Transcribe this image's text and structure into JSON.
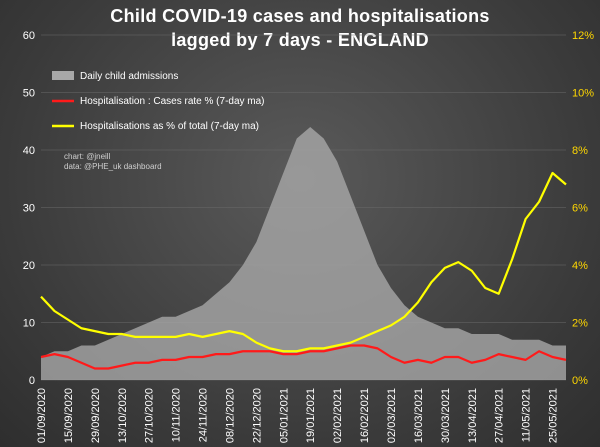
{
  "chart_data": {
    "type": "area",
    "title_line1": "Child COVID-19 cases and hospitalisations",
    "title_line2": "lagged by 7 days - ENGLAND",
    "y_left": {
      "min": 0,
      "max": 60,
      "ticks": [
        "0",
        "10",
        "20",
        "30",
        "40",
        "50",
        "60"
      ]
    },
    "y_right": {
      "min": 0,
      "max": 12,
      "ticks": [
        "0%",
        "2%",
        "4%",
        "6%",
        "8%",
        "10%",
        "12%"
      ]
    },
    "x_labels": [
      "01/09/2020",
      "15/09/2020",
      "29/09/2020",
      "13/10/2020",
      "27/10/2020",
      "10/11/2020",
      "24/11/2020",
      "08/12/2020",
      "22/12/2020",
      "05/01/2021",
      "19/01/2021",
      "02/02/2021",
      "16/02/2021",
      "02/03/2021",
      "16/03/2021",
      "30/03/2021",
      "13/04/2021",
      "27/04/2021",
      "11/05/2021",
      "25/05/2021"
    ],
    "series": [
      {
        "name": "Daily child admissions",
        "axis": "left",
        "kind": "area",
        "color": "#a8a8a8",
        "x_days": [
          0,
          7,
          14,
          21,
          28,
          35,
          42,
          49,
          56,
          63,
          70,
          77,
          84,
          91,
          98,
          105,
          112,
          119,
          126,
          133,
          140,
          147,
          154,
          161,
          168,
          175,
          182,
          189,
          196,
          203,
          210,
          217,
          224,
          231,
          238,
          245,
          252,
          259,
          266,
          273
        ],
        "values": [
          4,
          5,
          5,
          6,
          6,
          7,
          8,
          9,
          10,
          11,
          11,
          12,
          13,
          15,
          17,
          20,
          24,
          30,
          36,
          42,
          44,
          42,
          38,
          32,
          26,
          20,
          16,
          13,
          11,
          10,
          9,
          9,
          8,
          8,
          8,
          7,
          7,
          7,
          6,
          6
        ]
      },
      {
        "name": "Hospitalisation : Cases rate % (7-day ma)",
        "axis": "right",
        "kind": "line",
        "color": "#ff1a1a",
        "x_days": [
          0,
          7,
          14,
          21,
          28,
          35,
          42,
          49,
          56,
          63,
          70,
          77,
          84,
          91,
          98,
          105,
          112,
          119,
          126,
          133,
          140,
          147,
          154,
          161,
          168,
          175,
          182,
          189,
          196,
          203,
          210,
          217,
          224,
          231,
          238,
          245,
          252,
          259,
          266,
          273
        ],
        "values": [
          0.8,
          0.9,
          0.8,
          0.6,
          0.4,
          0.4,
          0.5,
          0.6,
          0.6,
          0.7,
          0.7,
          0.8,
          0.8,
          0.9,
          0.9,
          1.0,
          1.0,
          1.0,
          0.9,
          0.9,
          1.0,
          1.0,
          1.1,
          1.2,
          1.2,
          1.1,
          0.8,
          0.6,
          0.7,
          0.6,
          0.8,
          0.8,
          0.6,
          0.7,
          0.9,
          0.8,
          0.7,
          1.0,
          0.8,
          0.7
        ]
      },
      {
        "name": "Hospitalisations as % of total (7-day ma)",
        "axis": "right",
        "kind": "line",
        "color": "#ffff00",
        "x_days": [
          0,
          7,
          14,
          21,
          28,
          35,
          42,
          49,
          56,
          63,
          70,
          77,
          84,
          91,
          98,
          105,
          112,
          119,
          126,
          133,
          140,
          147,
          154,
          161,
          168,
          175,
          182,
          189,
          196,
          203,
          210,
          217,
          224,
          231,
          238,
          245,
          252,
          259,
          266,
          273
        ],
        "values": [
          2.9,
          2.4,
          2.1,
          1.8,
          1.7,
          1.6,
          1.6,
          1.5,
          1.5,
          1.5,
          1.5,
          1.6,
          1.5,
          1.6,
          1.7,
          1.6,
          1.3,
          1.1,
          1.0,
          1.0,
          1.1,
          1.1,
          1.2,
          1.3,
          1.5,
          1.7,
          1.9,
          2.2,
          2.7,
          3.4,
          3.9,
          4.1,
          3.8,
          3.2,
          3.0,
          4.2,
          5.6,
          6.2,
          7.2,
          6.8
        ]
      }
    ],
    "annotations": [
      "chart: @jneill",
      "data: @PHE_uk dashboard"
    ]
  }
}
